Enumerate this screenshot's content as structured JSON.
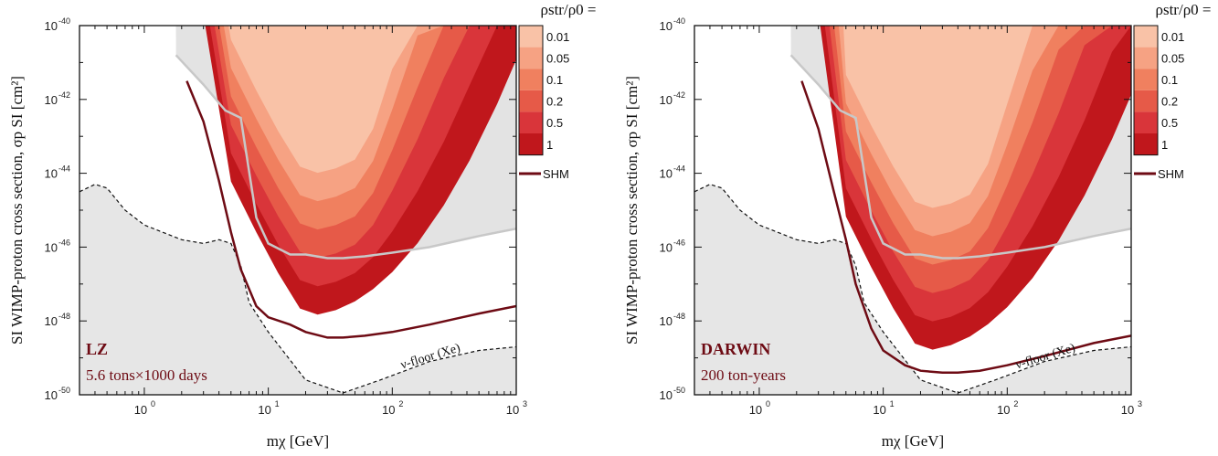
{
  "chart_data": [
    {
      "type": "area",
      "panel": "LZ",
      "annotation": {
        "title": "LZ",
        "subtitle": "5.6 tons×1000 days"
      },
      "xlabel": "m_χ [GeV]",
      "ylabel": "SI WIMP-proton cross section, σ_p^SI [cm²]",
      "xscale": "log",
      "yscale": "log",
      "xlim": [
        0.3,
        1000
      ],
      "ylim": [
        1e-50,
        1e-40
      ],
      "x_ticks": [
        "10^0",
        "10^1",
        "10^2",
        "10^3"
      ],
      "y_ticks": [
        "10^-50",
        "10^-48",
        "10^-46",
        "10^-44",
        "10^-42",
        "10^-40"
      ],
      "colorbar": {
        "title": "ρ_str/ρ_0 =",
        "levels": [
          "0.01",
          "0.05",
          "0.1",
          "0.2",
          "0.5",
          "1"
        ],
        "colors": [
          "#f9c2a7",
          "#f6a283",
          "#f0805f",
          "#e65a48",
          "#d9353a",
          "#c0171c"
        ]
      },
      "legend": [
        {
          "label": "SHM",
          "color": "#6e0b14"
        }
      ],
      "floor_label": "ν-floor (Xe)",
      "series": [
        {
          "name": "SHM",
          "x": [
            2.2,
            3,
            4,
            5,
            6,
            8,
            10,
            15,
            20,
            30,
            40,
            60,
            100,
            200,
            500,
            1000
          ],
          "log10_y": [
            -41.5,
            -42.6,
            -44.2,
            -45.6,
            -46.6,
            -47.6,
            -47.9,
            -48.1,
            -48.3,
            -48.45,
            -48.45,
            -48.4,
            -48.3,
            -48.1,
            -47.8,
            -47.6
          ]
        }
      ],
      "exclusion_grey": {
        "x": [
          1.8,
          3,
          4.5,
          6,
          8,
          10,
          15,
          20,
          30,
          40,
          60,
          100,
          200,
          500,
          1000
        ],
        "log10_y": [
          -40.8,
          -41.6,
          -42.3,
          -42.5,
          -45.2,
          -45.9,
          -46.2,
          -46.2,
          -46.3,
          -46.3,
          -46.25,
          -46.15,
          -46.0,
          -45.7,
          -45.5
        ]
      },
      "neutrino_floor": {
        "x": [
          0.3,
          0.4,
          0.5,
          0.7,
          1,
          2,
          3,
          4,
          5,
          6,
          7,
          10,
          20,
          40,
          80,
          200,
          500,
          1000
        ],
        "log10_y": [
          -44.5,
          -44.3,
          -44.4,
          -45.0,
          -45.4,
          -45.8,
          -45.9,
          -45.8,
          -45.9,
          -46.5,
          -47.5,
          -48.3,
          -49.6,
          -49.95,
          -49.6,
          -49.1,
          -48.8,
          -48.7
        ]
      }
    },
    {
      "type": "area",
      "panel": "DARWIN",
      "annotation": {
        "title": "DARWIN",
        "subtitle": "200 ton-years"
      },
      "xlabel": "m_χ [GeV]",
      "ylabel": "SI WIMP-proton cross section, σ_p^SI [cm²]",
      "xscale": "log",
      "yscale": "log",
      "xlim": [
        0.3,
        1000
      ],
      "ylim": [
        1e-50,
        1e-40
      ],
      "x_ticks": [
        "10^0",
        "10^1",
        "10^2",
        "10^3"
      ],
      "y_ticks": [
        "10^-50",
        "10^-48",
        "10^-46",
        "10^-44",
        "10^-42",
        "10^-40"
      ],
      "colorbar": {
        "title": "ρ_str/ρ_0 =",
        "levels": [
          "0.01",
          "0.05",
          "0.1",
          "0.2",
          "0.5",
          "1"
        ],
        "colors": [
          "#f9c2a7",
          "#f6a283",
          "#f0805f",
          "#e65a48",
          "#d9353a",
          "#c0171c"
        ]
      },
      "legend": [
        {
          "label": "SHM",
          "color": "#6e0b14"
        }
      ],
      "floor_label": "ν-floor (Xe)",
      "series": [
        {
          "name": "SHM",
          "x": [
            2.2,
            3,
            4,
            5,
            6,
            8,
            10,
            15,
            20,
            30,
            40,
            60,
            100,
            200,
            500,
            1000
          ],
          "log10_y": [
            -41.5,
            -42.8,
            -44.5,
            -45.8,
            -47.0,
            -48.2,
            -48.8,
            -49.2,
            -49.35,
            -49.4,
            -49.4,
            -49.35,
            -49.2,
            -48.95,
            -48.6,
            -48.4
          ]
        }
      ],
      "exclusion_grey": {
        "x": [
          1.8,
          3,
          4.5,
          6,
          8,
          10,
          15,
          20,
          30,
          40,
          60,
          100,
          200,
          500,
          1000
        ],
        "log10_y": [
          -40.8,
          -41.6,
          -42.3,
          -42.5,
          -45.2,
          -45.9,
          -46.2,
          -46.2,
          -46.3,
          -46.3,
          -46.25,
          -46.15,
          -46.0,
          -45.7,
          -45.5
        ]
      },
      "neutrino_floor": {
        "x": [
          0.3,
          0.4,
          0.5,
          0.7,
          1,
          2,
          3,
          4,
          5,
          6,
          7,
          10,
          20,
          40,
          80,
          200,
          500,
          1000
        ],
        "log10_y": [
          -44.5,
          -44.3,
          -44.4,
          -45.0,
          -45.4,
          -45.8,
          -45.9,
          -45.8,
          -45.9,
          -46.5,
          -47.5,
          -48.3,
          -49.6,
          -49.95,
          -49.6,
          -49.1,
          -48.8,
          -48.7
        ]
      }
    }
  ]
}
